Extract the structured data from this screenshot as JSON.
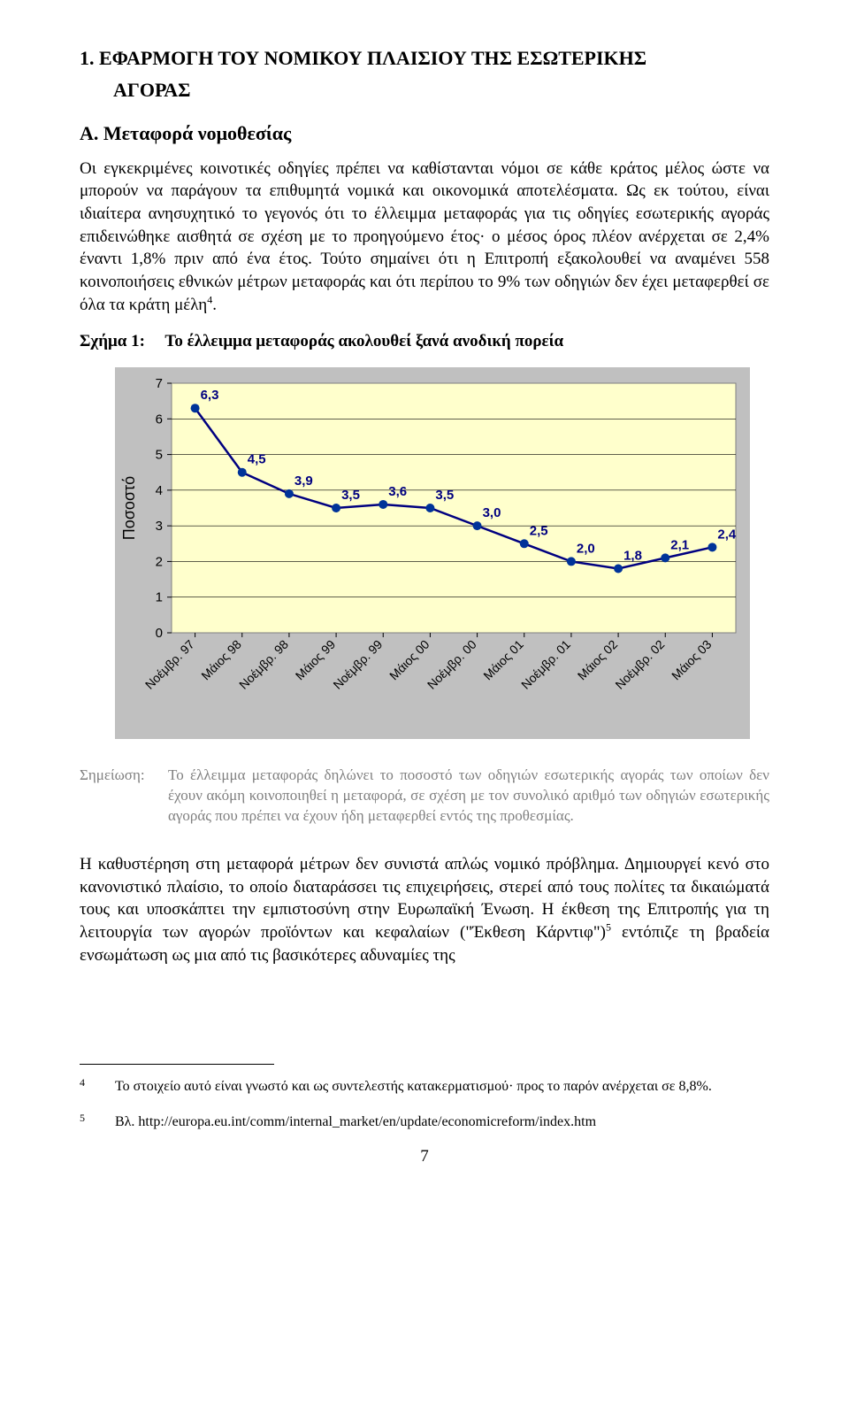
{
  "heading1": "1. ΕΦΑΡΜΟΓΗ ΤΟΥ ΝΟΜΙΚΟΥ ΠΛΑΙΣΙΟΥ ΤΗΣ ΕΣΩΤΕΡΙΚΗΣ",
  "heading1_line2": "ΑΓΟΡΑΣ",
  "headingA": "Α. Μεταφορά νομοθεσίας",
  "para1": "Οι εγκεκριμένες κοινοτικές οδηγίες πρέπει να καθίστανται νόμοι σε κάθε κράτος μέλος ώστε να μπορούν να παράγουν τα επιθυμητά νομικά και οικονομικά αποτελέσματα. Ως εκ τούτου, είναι ιδιαίτερα ανησυχητικό το γεγονός ότι το έλλειμμα μεταφοράς για τις οδηγίες εσωτερικής αγοράς επιδεινώθηκε αισθητά σε σχέση με το προηγούμενο έτος· ο μέσος όρος πλέον ανέρχεται σε 2,4% έναντι 1,8% πριν από ένα έτος. Τούτο σημαίνει ότι η Επιτροπή εξακολουθεί να αναμένει 558 κοινοποιήσεις εθνικών μέτρων μεταφοράς και ότι περίπου το 9% των οδηγιών δεν έχει μεταφερθεί σε όλα τα κράτη μέλη",
  "para1_sup": "4",
  "para1_end": ".",
  "fig_caption_label": "Σχήμα 1:",
  "fig_caption_text": "Το έλλειμμα μεταφοράς ακολουθεί ξανά ανοδική πορεία",
  "chart": {
    "type": "line",
    "y_axis_label": "Ποσοστό",
    "y_axis_label_fontsize": 18,
    "ylim": [
      0,
      7
    ],
    "ytick_step": 1,
    "x_categories": [
      "Νοέμβρ. 97",
      "Μάιος 98",
      "Νοέμβρ. 98",
      "Μάιος 99",
      "Νοέμβρ. 99",
      "Μάιος 00",
      "Νοέμβρ. 00",
      "Μάιος 01",
      "Νοέμβρ. 01",
      "Μάιος 02",
      "Νοέμβρ. 02",
      "Μάιος 03"
    ],
    "values": [
      6.3,
      4.5,
      3.9,
      3.5,
      3.6,
      3.5,
      3.0,
      2.5,
      2.0,
      1.8,
      2.1,
      2.4
    ],
    "value_labels": [
      "6,3",
      "4,5",
      "3,9",
      "3,5",
      "3,6",
      "3,5",
      "3,0",
      "2,5",
      "2,0",
      "1,8",
      "2,1",
      "2,4"
    ],
    "line_color": "#000080",
    "marker_fill": "#003399",
    "marker_radius": 5,
    "line_width": 2.5,
    "label_color": "#000080",
    "label_fontsize": 15,
    "label_fontweight": "bold",
    "plot_bg": "#ffffcc",
    "outer_bg": "#c0c0c0",
    "plot_border": "#808080",
    "grid_color": "#000000",
    "tick_label_color": "#000000",
    "tick_fontsize": 15,
    "xlabel_fontsize": 14,
    "xlabel_angle": -45
  },
  "note_label": "Σημείωση:",
  "note_text": "Το έλλειμμα μεταφοράς δηλώνει το ποσοστό των οδηγιών εσωτερικής αγοράς των οποίων δεν έχουν ακόμη κοινοποιηθεί η μεταφορά, σε σχέση με τον συνολικό αριθμό των οδηγιών εσωτερικής αγοράς που πρέπει να έχουν ήδη μεταφερθεί εντός της προθεσμίας.",
  "para2a": "Η καθυστέρηση στη μεταφορά μέτρων δεν συνιστά απλώς νομικό πρόβλημα. Δημιουργεί κενό στο κανονιστικό πλαίσιο, το οποίο διαταράσσει τις επιχειρήσεις, στερεί από τους πολίτες τα δικαιώματά τους και υποσκάπτει την εμπιστοσύνη στην Ευρωπαϊκή Ένωση. Η έκθεση της Επιτροπής για τη λειτουργία των αγορών προϊόντων και κεφαλαίων (\"Έκθεση Κάρντιφ\")",
  "para2_sup": "5",
  "para2b": " εντόπιζε τη βραδεία ενσωμάτωση ως μια από τις βασικότερες αδυναμίες της",
  "footnote4_num": "4",
  "footnote4_text": "Το στοιχείο αυτό είναι γνωστό και ως συντελεστής κατακερματισμού· προς το παρόν ανέρχεται σε 8,8%.",
  "footnote5_num": "5",
  "footnote5_text": "Βλ. http://europa.eu.int/comm/internal_market/en/update/economicreform/index.htm",
  "page_number": "7"
}
